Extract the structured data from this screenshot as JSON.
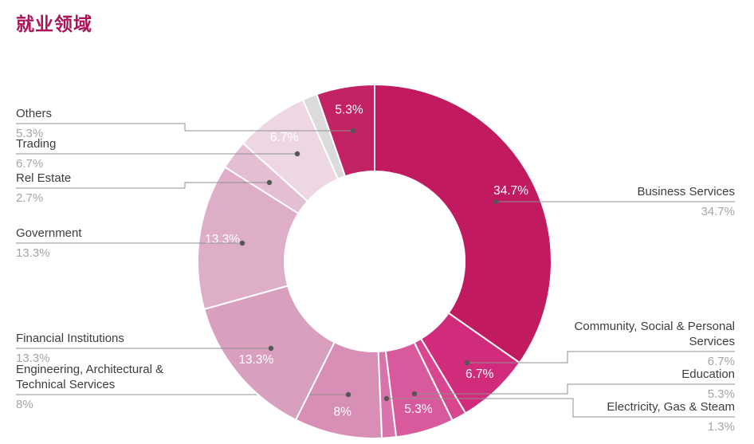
{
  "page": {
    "title": "就业领域",
    "title_color": "#AC1358"
  },
  "chart_data": {
    "type": "pie",
    "subtype": "donut",
    "title": "就业领域",
    "unit": "%",
    "legend_position": "none",
    "label_style": "callout",
    "slices": [
      {
        "label": "Business Services",
        "value": 34.7,
        "display": "34.7%",
        "color": "#C21A60",
        "show_inner": true,
        "callout": "right"
      },
      {
        "label": "Community, Social & Personal Services",
        "value": 6.7,
        "display": "6.7%",
        "color": "#D02C7B",
        "show_inner": true,
        "callout": "right"
      },
      {
        "label": "",
        "value": 1.35,
        "display": "",
        "color": "#D7468E",
        "show_inner": false,
        "callout": null
      },
      {
        "label": "Education",
        "value": 5.3,
        "display": "5.3%",
        "color": "#D95A9C",
        "show_inner": true,
        "callout": "right"
      },
      {
        "label": "Electricity, Gas & Steam",
        "value": 1.3,
        "display": "1.3%",
        "color": "#D873AC",
        "show_inner": false,
        "callout": "right"
      },
      {
        "label": "Engineering, Architectural & Technical Services",
        "value": 8,
        "display": "8%",
        "color": "#D88FB6",
        "show_inner": true,
        "callout": "left"
      },
      {
        "label": "Financial Institutions",
        "value": 13.3,
        "display": "13.3%",
        "color": "#D99FBF",
        "show_inner": true,
        "callout": "left"
      },
      {
        "label": "Government",
        "value": 13.3,
        "display": "13.3%",
        "color": "#DEAEC9",
        "show_inner": true,
        "callout": "left"
      },
      {
        "label": "Rel Estate",
        "value": 2.7,
        "display": "2.7%",
        "color": "#E4BFD3",
        "show_inner": false,
        "callout": "left"
      },
      {
        "label": "Trading",
        "value": 6.7,
        "display": "6.7%",
        "color": "#EDD7E3",
        "show_inner": true,
        "callout": "left"
      },
      {
        "label": "",
        "value": 1.35,
        "display": "",
        "color": "#DBDBDB",
        "show_inner": false,
        "callout": null
      },
      {
        "label": "Others",
        "value": 5.3,
        "display": "5.3%",
        "color": "#C32264",
        "show_inner": true,
        "callout": "left"
      }
    ],
    "colors": {
      "inner_label_text": "#ffffff",
      "callout_line": "#8f8f8f",
      "callout_dot": "#565656",
      "slice_border": "#ffffff"
    }
  }
}
